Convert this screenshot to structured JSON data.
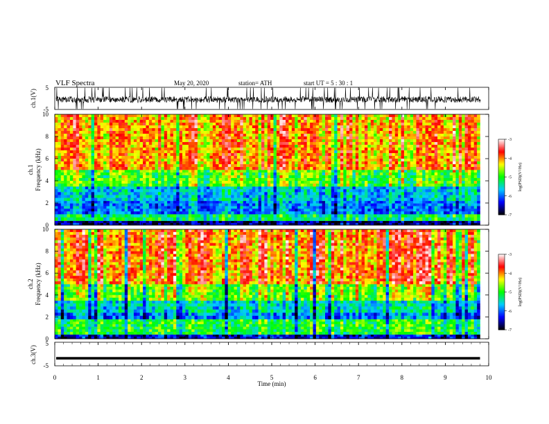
{
  "header": {
    "title": "VLF Spectra",
    "date": "May 20, 2020",
    "station": "station= ATH",
    "start_ut": "start UT = 5 : 30 : 1"
  },
  "chart_data": [
    {
      "type": "line",
      "ylabel": "ch.1(V)",
      "ylim": [
        -5,
        5
      ],
      "y_ticks": [
        "5",
        "-5"
      ],
      "xlim": [
        0,
        10
      ],
      "signal": "waveform",
      "typical_range": [
        -2.5,
        1.5
      ]
    },
    {
      "type": "heatmap",
      "ylabel_line1": "ch.1",
      "ylabel_line2": "Frequency (kHz)",
      "ylim": [
        0,
        10
      ],
      "y_ticks": [
        "0",
        "2",
        "4",
        "6",
        "8",
        "10"
      ],
      "xlim": [
        0,
        9.8
      ],
      "colorbar": {
        "label": "log(PSD)(V²/Hz)",
        "range": [
          -7,
          -3
        ],
        "ticks": [
          "-3",
          "-4",
          "-5",
          "-6",
          "-7"
        ],
        "colors": [
          "#000000",
          "#0000ff",
          "#00ccff",
          "#00ff00",
          "#ffff00",
          "#ff0000",
          "#ffffff"
        ]
      },
      "bands": [
        {
          "from_khz": 0.0,
          "to_khz": 0.4,
          "level": -6.6
        },
        {
          "from_khz": 0.4,
          "to_khz": 1.0,
          "level": -5.2
        },
        {
          "from_khz": 1.0,
          "to_khz": 2.2,
          "level": -5.9
        },
        {
          "from_khz": 2.2,
          "to_khz": 3.5,
          "level": -5.6
        },
        {
          "from_khz": 3.5,
          "to_khz": 5.0,
          "level": -4.8
        },
        {
          "from_khz": 5.0,
          "to_khz": 10.0,
          "level": -4.0
        }
      ]
    },
    {
      "type": "heatmap",
      "ylabel_line1": "ch.2",
      "ylabel_line2": "Frequency (kHz)",
      "ylim": [
        0,
        10
      ],
      "y_ticks": [
        "0",
        "2",
        "4",
        "6",
        "8",
        "10"
      ],
      "xlim": [
        0,
        9.8
      ],
      "colorbar": {
        "label": "log(PSD)(V²/Hz)",
        "range": [
          -7,
          -3
        ],
        "ticks": [
          "-3",
          "-4",
          "-5",
          "-6",
          "-7"
        ],
        "colors": [
          "#000000",
          "#0000ff",
          "#00ccff",
          "#00ff00",
          "#ffff00",
          "#ff0000",
          "#ffffff"
        ]
      },
      "bands": [
        {
          "from_khz": 0.0,
          "to_khz": 0.4,
          "level": -6.4
        },
        {
          "from_khz": 0.4,
          "to_khz": 1.8,
          "level": -5.0
        },
        {
          "from_khz": 1.8,
          "to_khz": 2.4,
          "level": -5.9
        },
        {
          "from_khz": 2.4,
          "to_khz": 3.5,
          "level": -5.5
        },
        {
          "from_khz": 3.5,
          "to_khz": 5.0,
          "level": -4.7
        },
        {
          "from_khz": 5.0,
          "to_khz": 10.0,
          "level": -3.9
        }
      ]
    },
    {
      "type": "line",
      "ylabel": "ch.3(V)",
      "ylim": [
        -5,
        5
      ],
      "y_ticks": [
        "5",
        "-5"
      ],
      "xlim": [
        0,
        9.8
      ],
      "signal": "flat",
      "value": -1.8,
      "xlabel": "Time (min)",
      "x_ticks": [
        "0",
        "1",
        "2",
        "3",
        "4",
        "5",
        "6",
        "7",
        "8",
        "9",
        "10"
      ],
      "x_range": [
        0,
        10
      ]
    }
  ]
}
